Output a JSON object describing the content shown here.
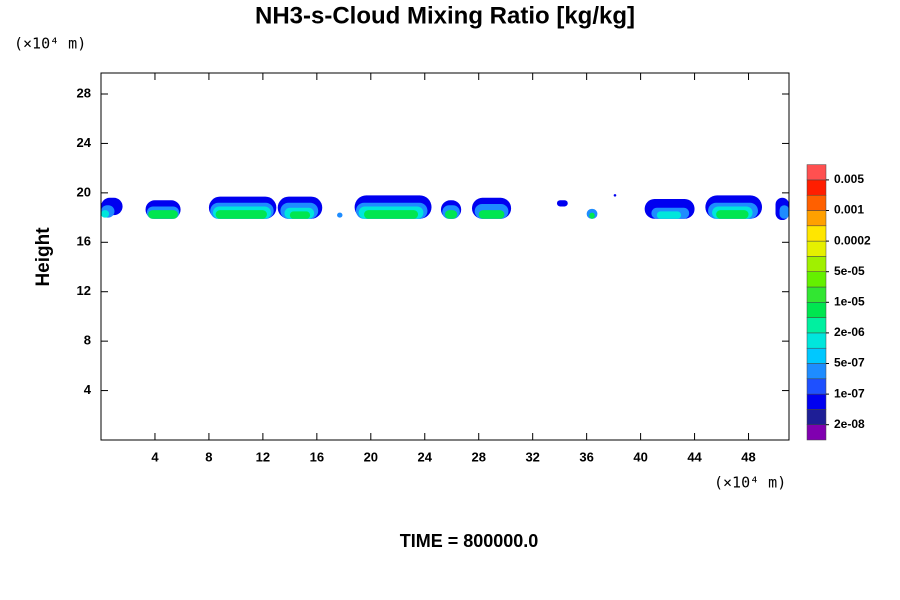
{
  "chart_data": {
    "type": "contour",
    "title": "NH3-s-Cloud Mixing Ratio [kg/kg]",
    "ylabel": "Height",
    "x_unit": "(×10⁴ m)",
    "y_unit": "(×10⁴ m)",
    "footer": "TIME = 800000.0",
    "xlim": [
      0,
      51
    ],
    "ylim": [
      0,
      29.7
    ],
    "xticks": [
      4,
      8,
      12,
      16,
      20,
      24,
      28,
      32,
      36,
      40,
      44,
      48
    ],
    "yticks": [
      4,
      8,
      12,
      16,
      20,
      24,
      28
    ],
    "colorbar": {
      "colors": [
        "#8000b0",
        "#1e1e96",
        "#0000f0",
        "#1e50ff",
        "#1e8cff",
        "#00c8ff",
        "#00e6dc",
        "#00f0a0",
        "#00e650",
        "#32e632",
        "#64f000",
        "#a0f000",
        "#e6f000",
        "#ffe600",
        "#ffa000",
        "#ff6000",
        "#ff1e00",
        "#ff5050",
        "#ffa0a0"
      ],
      "levels": [
        {
          "value": 2e-08,
          "label": "2e-08"
        },
        {
          "value": 1e-07,
          "label": "1e-07"
        },
        {
          "value": 5e-07,
          "label": "5e-07"
        },
        {
          "value": 2e-06,
          "label": "2e-06"
        },
        {
          "value": 1e-05,
          "label": "1e-05"
        },
        {
          "value": 5e-05,
          "label": "5e-05"
        },
        {
          "value": 0.0002,
          "label": "0.0002"
        },
        {
          "value": 0.001,
          "label": "0.001"
        },
        {
          "value": 0.005,
          "label": "0.005"
        }
      ]
    },
    "cells": [
      {
        "x": [
          0,
          1.6
        ],
        "y": [
          18.2,
          19.6
        ],
        "value": 5e-08
      },
      {
        "x": [
          0,
          1.0
        ],
        "y": [
          18.0,
          19.0
        ],
        "value": 2e-07
      },
      {
        "x": [
          0,
          0.6
        ],
        "y": [
          18.0,
          18.6
        ],
        "value": 1e-06
      },
      {
        "x": [
          3.3,
          5.9
        ],
        "y": [
          17.9,
          19.4
        ],
        "value": 5e-08
      },
      {
        "x": [
          3.4,
          5.8
        ],
        "y": [
          17.9,
          18.9
        ],
        "value": 2e-07
      },
      {
        "x": [
          3.5,
          5.7
        ],
        "y": [
          17.9,
          18.6
        ],
        "value": 4e-06
      },
      {
        "x": [
          8.0,
          13.0
        ],
        "y": [
          17.9,
          19.7
        ],
        "value": 5e-08
      },
      {
        "x": [
          8.1,
          12.8
        ],
        "y": [
          17.9,
          19.2
        ],
        "value": 2e-07
      },
      {
        "x": [
          8.3,
          12.6
        ],
        "y": [
          17.9,
          18.9
        ],
        "value": 1e-06
      },
      {
        "x": [
          8.5,
          12.3
        ],
        "y": [
          17.9,
          18.6
        ],
        "value": 4e-06
      },
      {
        "x": [
          13.1,
          16.4
        ],
        "y": [
          17.9,
          19.7
        ],
        "value": 5e-08
      },
      {
        "x": [
          13.3,
          16.1
        ],
        "y": [
          17.9,
          19.2
        ],
        "value": 2e-07
      },
      {
        "x": [
          13.6,
          15.8
        ],
        "y": [
          17.9,
          18.8
        ],
        "value": 1e-06
      },
      {
        "x": [
          14.0,
          15.5
        ],
        "y": [
          17.9,
          18.5
        ],
        "value": 4e-06
      },
      {
        "x": [
          17.5,
          17.9
        ],
        "y": [
          18.0,
          18.4
        ],
        "value": 2e-07
      },
      {
        "x": [
          18.8,
          24.5
        ],
        "y": [
          17.9,
          19.8
        ],
        "value": 5e-08
      },
      {
        "x": [
          18.9,
          24.2
        ],
        "y": [
          17.9,
          19.2
        ],
        "value": 2e-07
      },
      {
        "x": [
          19.1,
          23.9
        ],
        "y": [
          17.9,
          18.9
        ],
        "value": 1e-06
      },
      {
        "x": [
          19.5,
          23.5
        ],
        "y": [
          17.9,
          18.6
        ],
        "value": 4e-06
      },
      {
        "x": [
          25.2,
          26.7
        ],
        "y": [
          17.9,
          19.4
        ],
        "value": 5e-08
      },
      {
        "x": [
          25.3,
          26.6
        ],
        "y": [
          17.9,
          19.0
        ],
        "value": 2e-07
      },
      {
        "x": [
          25.5,
          26.4
        ],
        "y": [
          17.9,
          18.6
        ],
        "value": 4e-06
      },
      {
        "x": [
          27.5,
          30.4
        ],
        "y": [
          17.9,
          19.6
        ],
        "value": 5e-08
      },
      {
        "x": [
          27.7,
          30.2
        ],
        "y": [
          17.9,
          19.1
        ],
        "value": 2e-07
      },
      {
        "x": [
          28.0,
          29.9
        ],
        "y": [
          17.9,
          18.6
        ],
        "value": 4e-06
      },
      {
        "x": [
          33.8,
          34.6
        ],
        "y": [
          18.9,
          19.4
        ],
        "value": 5e-08
      },
      {
        "x": [
          36.0,
          36.8
        ],
        "y": [
          17.9,
          18.7
        ],
        "value": 2e-07
      },
      {
        "x": [
          36.2,
          36.6
        ],
        "y": [
          17.9,
          18.4
        ],
        "value": 4e-06
      },
      {
        "x": [
          38.0,
          38.2
        ],
        "y": [
          19.7,
          19.9
        ],
        "value": 5e-08
      },
      {
        "x": [
          40.3,
          44.0
        ],
        "y": [
          17.9,
          19.5
        ],
        "value": 5e-08
      },
      {
        "x": [
          40.8,
          43.6
        ],
        "y": [
          17.9,
          18.8
        ],
        "value": 2e-07
      },
      {
        "x": [
          41.2,
          43.0
        ],
        "y": [
          17.9,
          18.5
        ],
        "value": 1e-06
      },
      {
        "x": [
          44.8,
          49.0
        ],
        "y": [
          17.9,
          19.8
        ],
        "value": 5e-08
      },
      {
        "x": [
          45.0,
          48.7
        ],
        "y": [
          17.9,
          19.2
        ],
        "value": 2e-07
      },
      {
        "x": [
          45.3,
          48.3
        ],
        "y": [
          17.9,
          18.9
        ],
        "value": 1e-06
      },
      {
        "x": [
          45.6,
          48.0
        ],
        "y": [
          17.9,
          18.6
        ],
        "value": 4e-06
      },
      {
        "x": [
          50.0,
          51
        ],
        "y": [
          17.8,
          19.6
        ],
        "value": 5e-08
      },
      {
        "x": [
          50.3,
          51
        ],
        "y": [
          17.9,
          19.0
        ],
        "value": 2e-07
      }
    ]
  }
}
